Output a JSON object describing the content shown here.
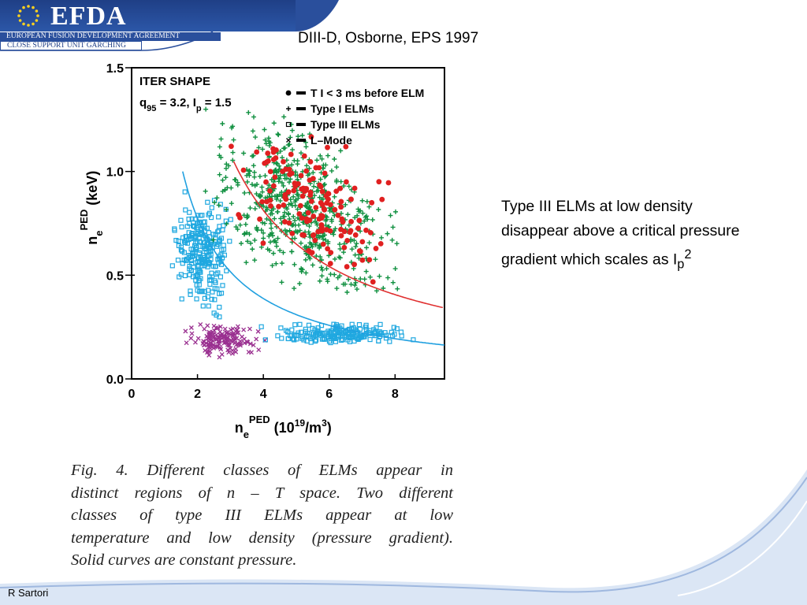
{
  "header": {
    "logo_text": "EFDA",
    "org_name": "EUROPEAN FUSION DEVELOPMENT AGREEMENT",
    "unit_name": "CLOSE SUPPORT UNIT GARCHING"
  },
  "slide": {
    "title": "DIII-D, Osborne, EPS 1997",
    "side_text_main": "Type III ELMs at low density disappear above a critical pressure gradient which scales as I",
    "side_text_sub": "p",
    "side_text_sup": "2",
    "caption_lines": [
      "Fig. 4.   Different classes of ELMs appear in",
      "distinct regions of n – T space.  Two different",
      "classes of type III ELMs appear at low",
      "temperature and low density (pressure gradient).",
      "Solid curves are constant pressure."
    ],
    "author": "R Sartori"
  },
  "colors": {
    "header_blue": "#1f3f86",
    "red_points": "#e02020",
    "green_points": "#109040",
    "cyan_points": "#20a8e0",
    "purple_points": "#9a3090"
  },
  "chart_data": {
    "type": "scatter",
    "title_lines": [
      "ITER SHAPE",
      "q95 = 3.2, Ip = 1.5"
    ],
    "xlabel": "n_e^PED (10^19/m^3)",
    "ylabel": "n_e^PED (keV)",
    "xlim": [
      0,
      9.5
    ],
    "ylim": [
      0,
      1.5
    ],
    "x_ticks": [
      "0",
      "2",
      "4",
      "6",
      "8"
    ],
    "y_ticks": [
      "0.0",
      "0.5",
      "1.0",
      "1.5"
    ],
    "legend_position": "top-right",
    "legend": [
      {
        "name": "T I < 3 ms before ELM",
        "marker": "dot",
        "color": "#e02020"
      },
      {
        "name": "Type I ELMs",
        "marker": "plus",
        "color": "#109040"
      },
      {
        "name": "Type III ELMs",
        "marker": "square",
        "color": "#20a8e0"
      },
      {
        "name": "L–Mode",
        "marker": "cross",
        "color": "#9a3090"
      }
    ],
    "curves": [
      {
        "name": "constant pressure (high)",
        "color": "#e03030",
        "c": 3.25,
        "x_range": [
          3.1,
          9.5
        ]
      },
      {
        "name": "constant pressure (low)",
        "color": "#20a0e0",
        "c": 1.55,
        "x_range": [
          1.55,
          9.5
        ]
      }
    ],
    "clusters": [
      {
        "series": "T I < 3 ms before ELM",
        "n": 150,
        "x_range": [
          2.5,
          8.3
        ],
        "y_range": [
          0.45,
          1.25
        ]
      },
      {
        "series": "Type I ELMs",
        "n": 600,
        "x_range": [
          1.7,
          8.6
        ],
        "y_range": [
          0.35,
          1.3
        ]
      },
      {
        "series": "Type III ELMs",
        "n": 260,
        "x_range": [
          1.1,
          3.2
        ],
        "y_range": [
          0.25,
          0.95
        ]
      },
      {
        "series": "Type III ELMs",
        "n": 180,
        "x_range": [
          3.5,
          9.0
        ],
        "y_range": [
          0.15,
          0.28
        ]
      },
      {
        "series": "L–Mode",
        "n": 150,
        "x_range": [
          1.3,
          4.2
        ],
        "y_range": [
          0.1,
          0.28
        ]
      }
    ]
  }
}
